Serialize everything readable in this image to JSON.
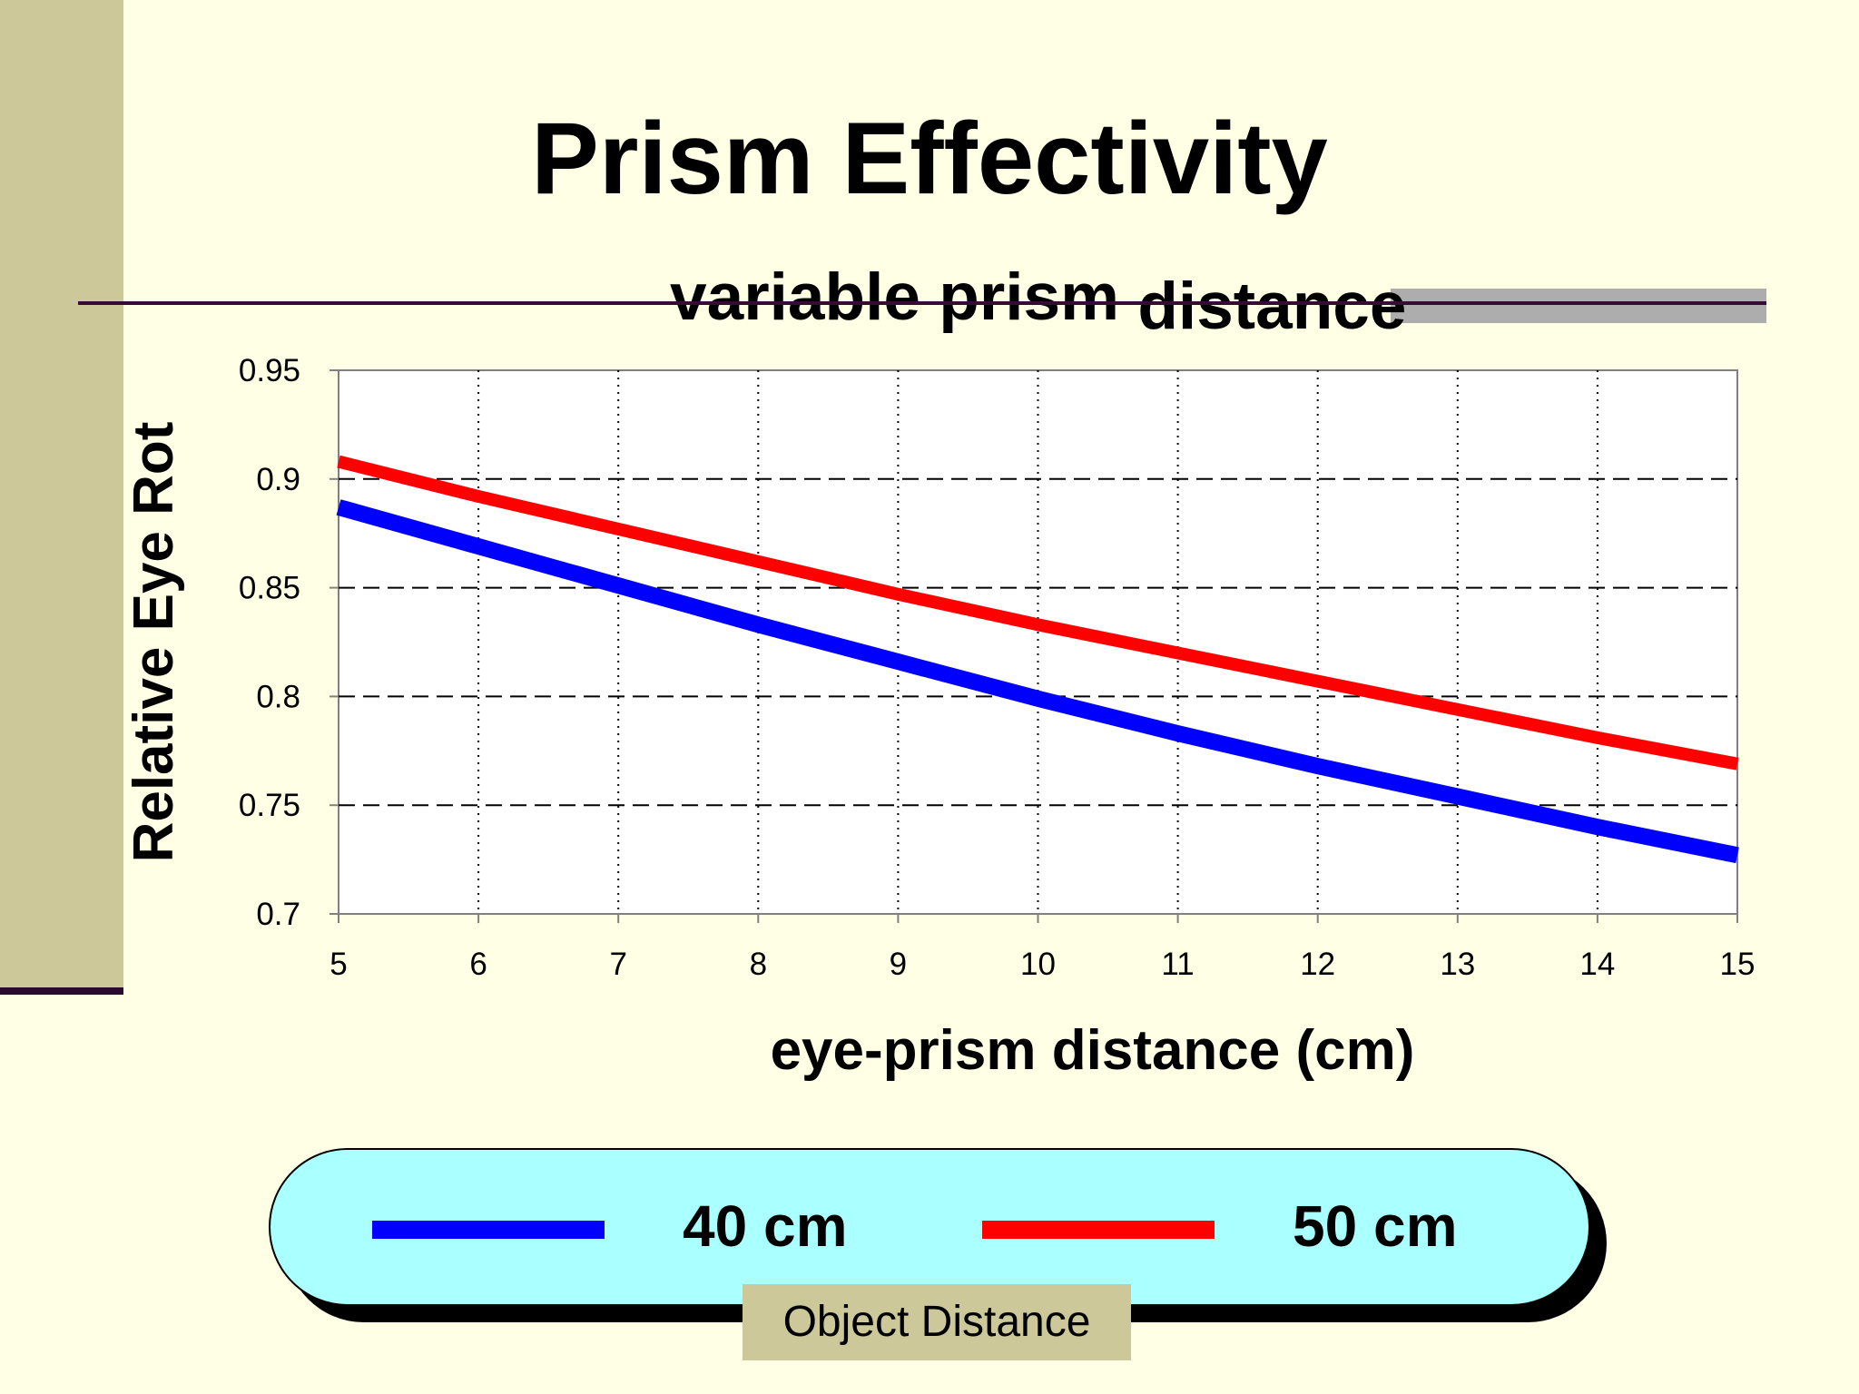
{
  "slide": {
    "title": "Prism Effectivity",
    "subtitle_part1": "variable prism ",
    "subtitle_part2": "distance"
  },
  "chart_data": {
    "type": "line",
    "xlabel": "eye-prism distance (cm)",
    "ylabel": "Relative Eye Rot",
    "xlim": [
      5,
      15
    ],
    "ylim": [
      0.7,
      0.95
    ],
    "x_ticks": [
      "5",
      "6",
      "7",
      "8",
      "9",
      "10",
      "11",
      "12",
      "13",
      "14",
      "15"
    ],
    "y_ticks": [
      "0.95",
      "0.9",
      "0.85",
      "0.8",
      "0.75",
      "0.7"
    ],
    "grid": {
      "horizontal": "dashed",
      "vertical": "dotted"
    },
    "legend_position": "bottom",
    "legend_title": "Object Distance",
    "series": [
      {
        "name": "40 cm",
        "color": "#0000FF",
        "x": [
          5,
          6,
          7,
          8,
          9,
          10,
          11,
          12,
          13,
          14,
          15
        ],
        "y": [
          0.887,
          0.869,
          0.851,
          0.833,
          0.816,
          0.799,
          0.783,
          0.768,
          0.754,
          0.74,
          0.727
        ]
      },
      {
        "name": "50 cm",
        "color": "#FF0000",
        "x": [
          5,
          6,
          7,
          8,
          9,
          10,
          11,
          12,
          13,
          14,
          15
        ],
        "y": [
          0.908,
          0.892,
          0.877,
          0.862,
          0.847,
          0.833,
          0.82,
          0.807,
          0.794,
          0.781,
          0.769
        ]
      }
    ]
  }
}
